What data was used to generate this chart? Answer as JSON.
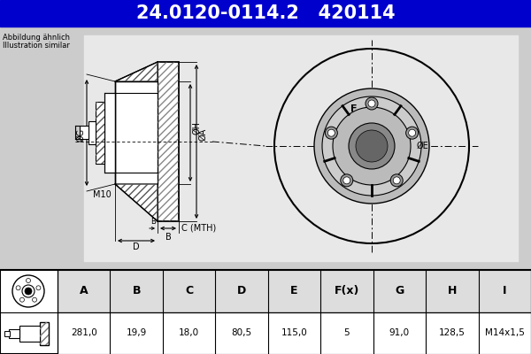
{
  "title_text": "24.0120-0114.2   420114",
  "title_bg": "#0000cc",
  "title_fg": "#ffffff",
  "subtitle1": "Abbildung ähnlich",
  "subtitle2": "Illustration similar",
  "table_headers": [
    "A",
    "B",
    "C",
    "D",
    "E",
    "F(x)",
    "G",
    "H",
    "I"
  ],
  "table_values": [
    "281,0",
    "19,9",
    "18,0",
    "80,5",
    "115,0",
    "5",
    "91,0",
    "128,5",
    "M14x1,5"
  ],
  "bg_color": "#ffffff",
  "diagram_bg": "#cccccc",
  "line_color": "#000000",
  "table_header_bg": "#cccccc",
  "table_row_bg": "#ffffff",
  "blue_line": "#4a7fc0",
  "hatch_color": "#555555"
}
